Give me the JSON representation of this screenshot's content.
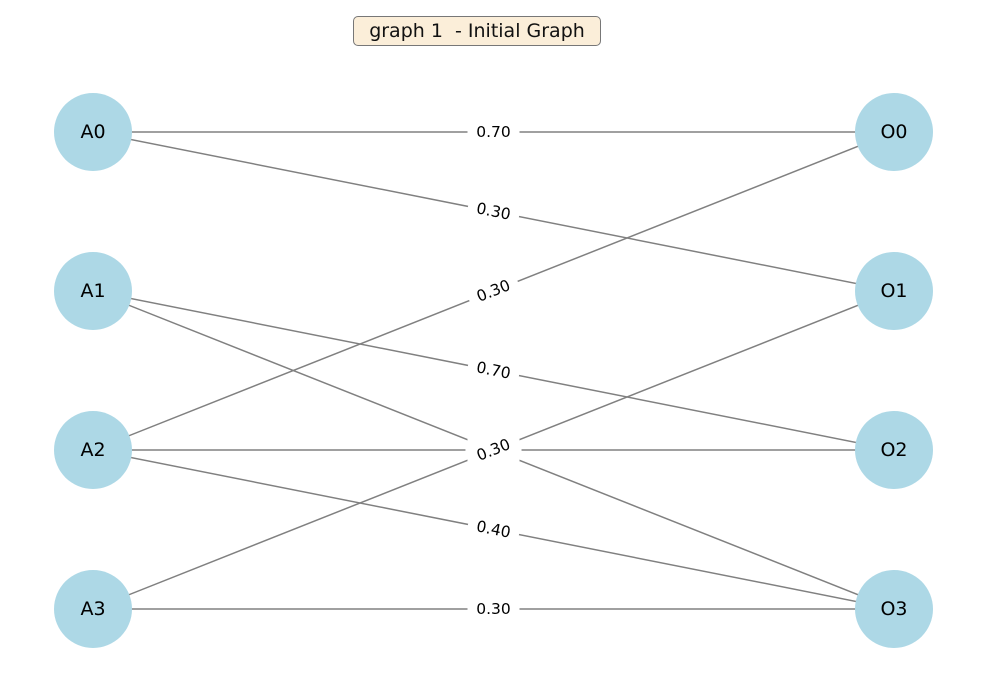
{
  "title": "graph 1  - Initial Graph",
  "colors": {
    "node_fill": "#add8e6",
    "edge": "#808080",
    "title_bg": "#fbeed9"
  },
  "nodes": [
    {
      "id": "A0"
    },
    {
      "id": "A1"
    },
    {
      "id": "A2"
    },
    {
      "id": "A3"
    },
    {
      "id": "O0"
    },
    {
      "id": "O1"
    },
    {
      "id": "O2"
    },
    {
      "id": "O3"
    }
  ],
  "edges": [
    {
      "source": "A0",
      "target": "O0",
      "weight": "0.70"
    },
    {
      "source": "A0",
      "target": "O1",
      "weight": "0.30"
    },
    {
      "source": "A1",
      "target": "O2",
      "weight": "0.70"
    },
    {
      "source": "A1",
      "target": "O3",
      "weight": "0.30"
    },
    {
      "source": "A2",
      "target": "O0",
      "weight": "0.30"
    },
    {
      "source": "A2",
      "target": "O2",
      "weight": "0.30"
    },
    {
      "source": "A2",
      "target": "O3",
      "weight": "0.40"
    },
    {
      "source": "A3",
      "target": "O1",
      "weight": "0.30"
    },
    {
      "source": "A3",
      "target": "O3",
      "weight": "0.30"
    }
  ]
}
